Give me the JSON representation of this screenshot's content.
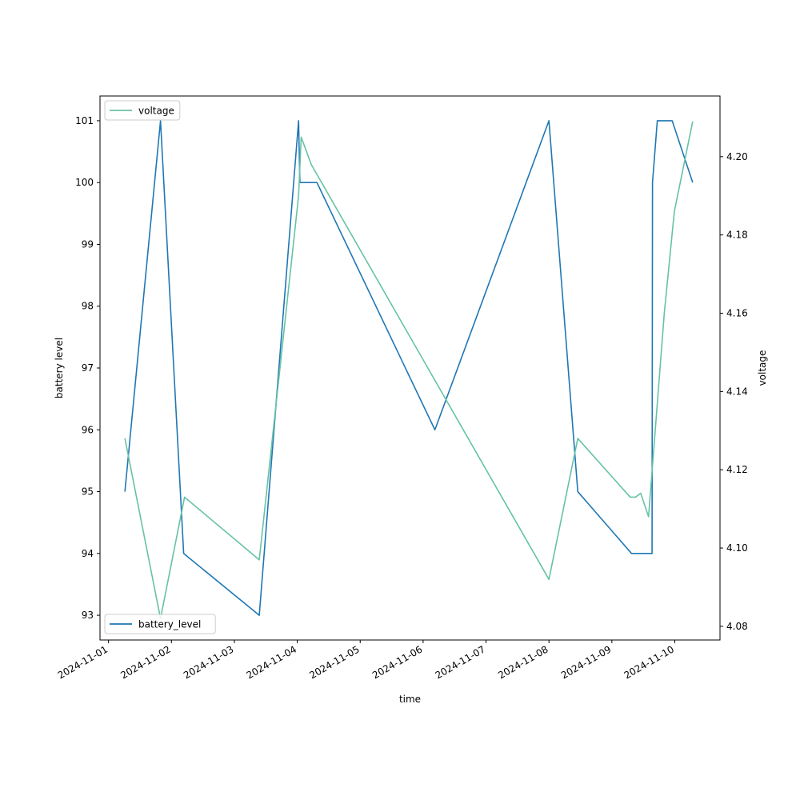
{
  "chart_data": {
    "type": "line",
    "xlabel": "time",
    "ylabel_left": "battery level",
    "ylabel_right": "voltage",
    "x_range": [
      "2024-10-31T20:45",
      "2024-11-10T17:15"
    ],
    "y_left_range": [
      92.6,
      101.4
    ],
    "y_right_range": [
      4.0765,
      4.2155
    ],
    "x_ticks": [
      "2024-11-01",
      "2024-11-02",
      "2024-11-03",
      "2024-11-04",
      "2024-11-05",
      "2024-11-06",
      "2024-11-07",
      "2024-11-08",
      "2024-11-09",
      "2024-11-10"
    ],
    "y_left_ticks": [
      "93",
      "94",
      "95",
      "96",
      "97",
      "98",
      "99",
      "100",
      "101"
    ],
    "y_right_ticks": [
      "4.08",
      "4.10",
      "4.12",
      "4.14",
      "4.16",
      "4.18",
      "4.20"
    ],
    "series": [
      {
        "name": "battery_level",
        "axis": "left",
        "color": "#1f77b4",
        "legend_position": "lower left",
        "points": [
          [
            "2024-11-01T06:15",
            95
          ],
          [
            "2024-11-01T19:50",
            101
          ],
          [
            "2024-11-02T04:40",
            94
          ],
          [
            "2024-11-03T09:30",
            93
          ],
          [
            "2024-11-04T00:30",
            101
          ],
          [
            "2024-11-04T01:00",
            100
          ],
          [
            "2024-11-04T07:30",
            100
          ],
          [
            "2024-11-06T04:30",
            96
          ],
          [
            "2024-11-08T00:00",
            101
          ],
          [
            "2024-11-08T11:00",
            95
          ],
          [
            "2024-11-09T07:30",
            94
          ],
          [
            "2024-11-09T14:00",
            94
          ],
          [
            "2024-11-09T14:00",
            94
          ],
          [
            "2024-11-09T15:20",
            94
          ],
          [
            "2024-11-09T15:30",
            100
          ],
          [
            "2024-11-09T17:20",
            101
          ],
          [
            "2024-11-09T23:00",
            101
          ],
          [
            "2024-11-10T06:50",
            100
          ]
        ]
      },
      {
        "name": "voltage",
        "axis": "right",
        "color": "#66c2a5",
        "legend_position": "upper left",
        "points": [
          [
            "2024-11-01T06:15",
            4.128
          ],
          [
            "2024-11-01T19:50",
            4.082
          ],
          [
            "2024-11-02T05:00",
            4.113
          ],
          [
            "2024-11-03T09:30",
            4.097
          ],
          [
            "2024-11-04T00:30",
            4.19
          ],
          [
            "2024-11-04T01:30",
            4.205
          ],
          [
            "2024-11-04T05:20",
            4.198
          ],
          [
            "2024-11-08T00:00",
            4.092
          ],
          [
            "2024-11-08T11:00",
            4.128
          ],
          [
            "2024-11-09T07:00",
            4.113
          ],
          [
            "2024-11-09T09:00",
            4.113
          ],
          [
            "2024-11-09T11:00",
            4.114
          ],
          [
            "2024-11-09T14:00",
            4.108
          ],
          [
            "2024-11-09T20:00",
            4.16
          ],
          [
            "2024-11-09T23:50",
            4.186
          ],
          [
            "2024-11-10T06:50",
            4.209
          ]
        ]
      }
    ]
  }
}
